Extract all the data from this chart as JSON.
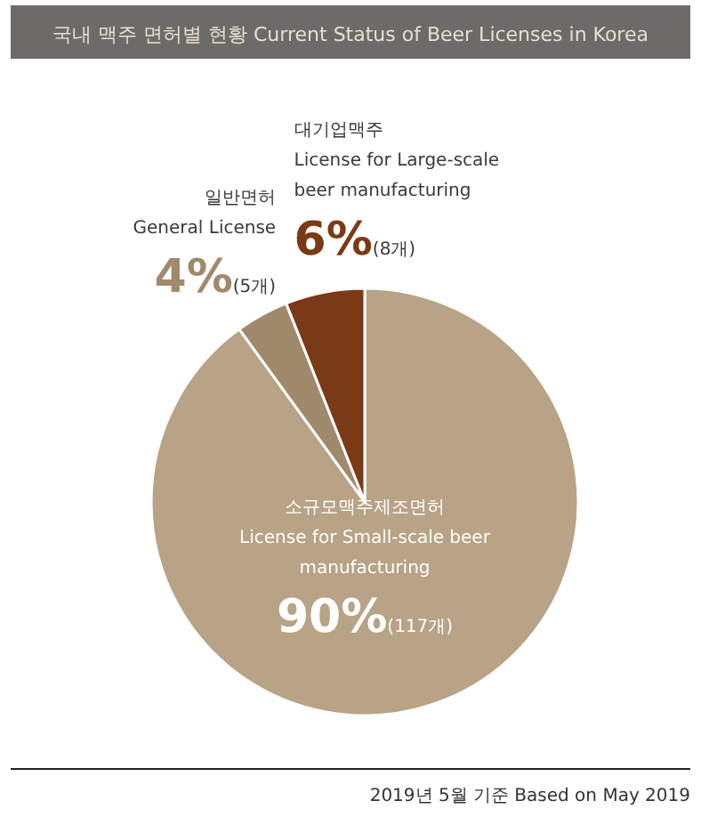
{
  "chart_data": {
    "type": "pie",
    "title": "국내 맥주 면허별 현황  Current Status of Beer Licenses in Korea",
    "categories": [
      "소규모맥주제조면허\nLicense for Small-scale beer\nmanufacturing",
      "일반면허\nGeneral License",
      "대기업맥주\nLicense for Large-scale\nbeer manufacturing"
    ],
    "values": [
      90,
      4,
      6
    ],
    "value_labels": [
      "90%(117개)",
      "4%(5개)",
      "6%(8개)"
    ],
    "colors": [
      "#b8a386",
      "#a08a6c",
      "#7b3a16"
    ],
    "annotations": [
      "2019년 5월 기준  Based on May 2019"
    ]
  }
}
